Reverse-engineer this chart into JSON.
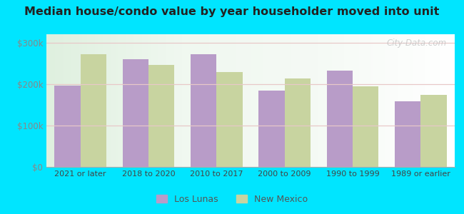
{
  "title": "Median house/condo value by year householder moved into unit",
  "categories": [
    "2021 or later",
    "2018 to 2020",
    "2010 to 2017",
    "2000 to 2009",
    "1990 to 1999",
    "1989 or earlier"
  ],
  "los_lunas": [
    196000,
    260000,
    271000,
    184000,
    232000,
    158000
  ],
  "new_mexico": [
    272000,
    246000,
    228000,
    213000,
    194000,
    173000
  ],
  "color_los_lunas": "#b89cc8",
  "color_new_mexico": "#c8d4a0",
  "ylim": [
    0,
    320000
  ],
  "yticks": [
    0,
    100000,
    200000,
    300000
  ],
  "ytick_labels": [
    "$0",
    "$100k",
    "$200k",
    "$300k"
  ],
  "background_color": "#00e5ff",
  "legend_los_lunas": "Los Lunas",
  "legend_new_mexico": "New Mexico",
  "watermark": "City-Data.com"
}
